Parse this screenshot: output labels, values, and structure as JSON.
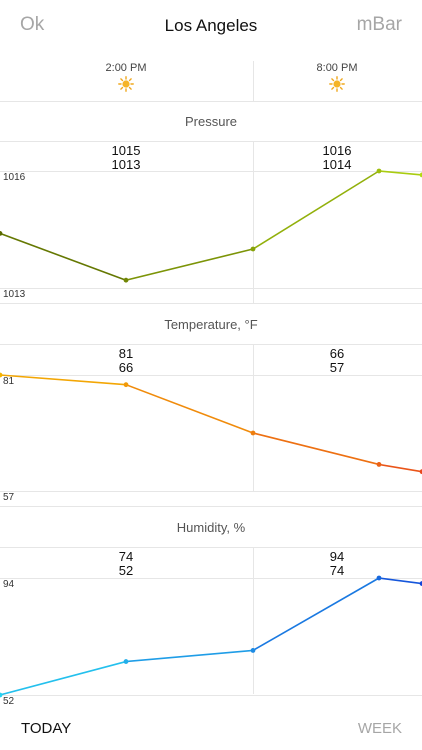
{
  "header": {
    "left_button": "Ok",
    "title": "Los Angeles",
    "right_button": "mBar"
  },
  "times": [
    {
      "label": "2:00 PM",
      "icon": "sun-icon"
    },
    {
      "label": "8:00 PM",
      "icon": "sun-icon"
    }
  ],
  "pressure": {
    "title": "Pressure",
    "max_label": "1016",
    "min_label": "1013",
    "slot1": {
      "high": "1015",
      "low": "1013"
    },
    "slot2": {
      "high": "1016",
      "low": "1014"
    },
    "points": [
      1014.4,
      1013.2,
      1014.0,
      1016.0,
      1015.9
    ],
    "colors": [
      "#5a6a00",
      "#b4da12"
    ]
  },
  "temperature": {
    "title": "Temperature, °F",
    "max_label": "81",
    "min_label": "57",
    "slot1": {
      "high": "81",
      "low": "66"
    },
    "slot2": {
      "high": "66",
      "low": "57"
    },
    "points": [
      81,
      79,
      69,
      62.5,
      61
    ],
    "colors": [
      "#f4b400",
      "#e8471c"
    ]
  },
  "humidity": {
    "title": "Humidity, %",
    "max_label": "94",
    "min_label": "52",
    "slot1": {
      "high": "74",
      "low": "52"
    },
    "slot2": {
      "high": "94",
      "low": "74"
    },
    "points": [
      52,
      64,
      68,
      94,
      92
    ],
    "colors": [
      "#27d2f0",
      "#1244d8"
    ]
  },
  "footer": {
    "left": "TODAY",
    "right": "WEEK"
  }
}
